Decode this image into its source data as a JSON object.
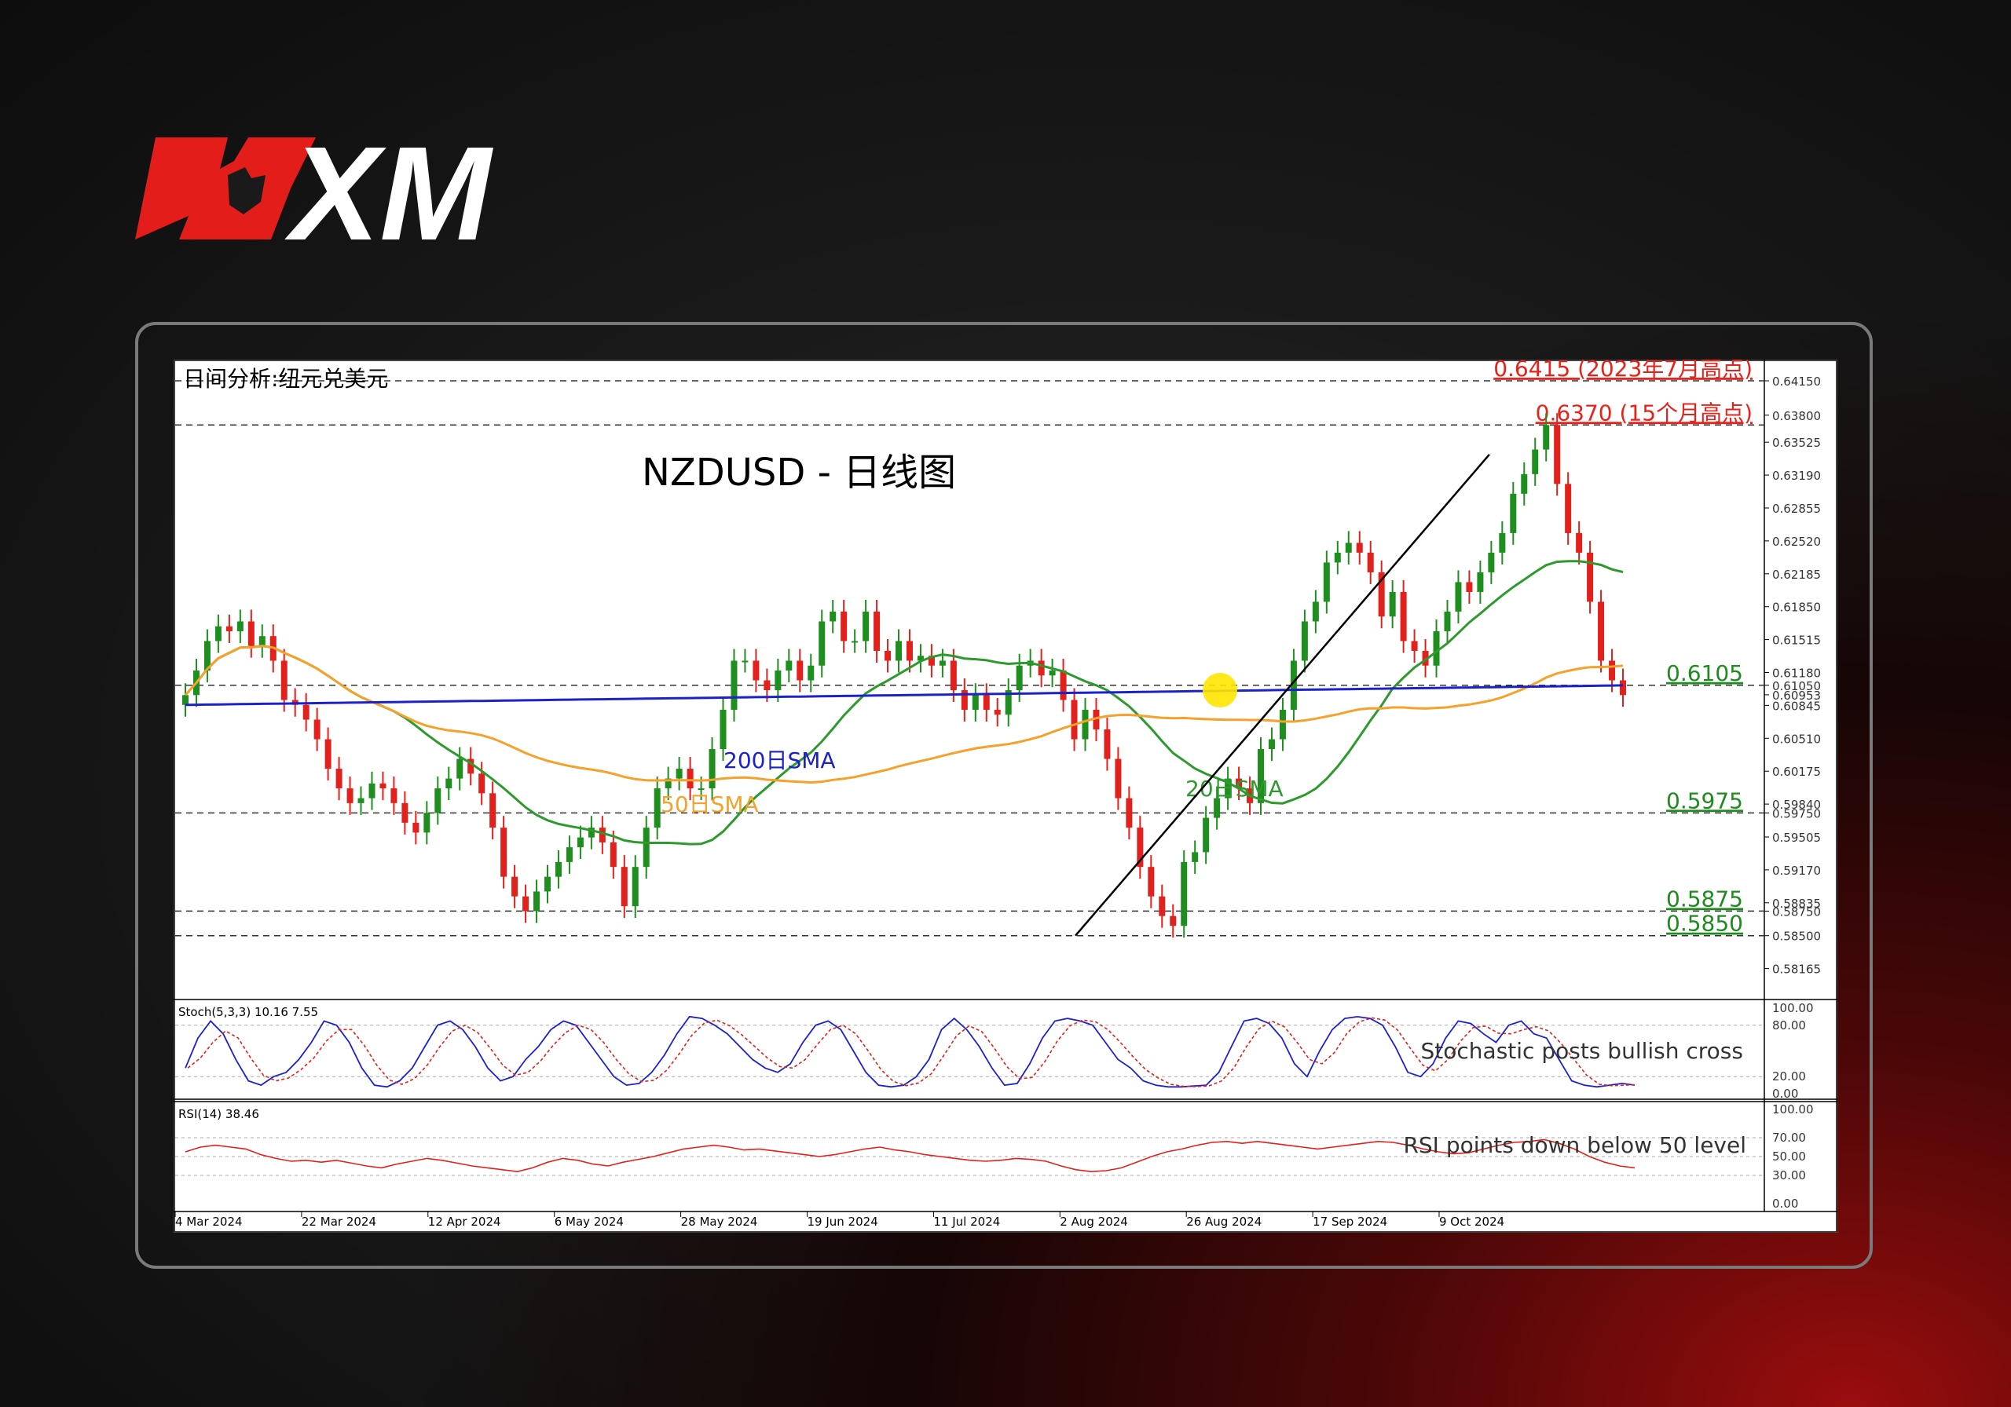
{
  "brand": {
    "logo_text": "XM",
    "colors": {
      "red": "#e31d1a",
      "white": "#ffffff"
    }
  },
  "chart_data": {
    "type": "candlestick",
    "panel_title": "日间分析:纽元兑美元",
    "title": "NZDUSD - 日线图",
    "price_axis": {
      "range": [
        0.5785,
        0.6435
      ],
      "ticks": [
        "0.64150",
        "0.63800",
        "0.63525",
        "0.63190",
        "0.62855",
        "0.62520",
        "0.62185",
        "0.61850",
        "0.61515",
        "0.61180",
        "0.61050",
        "0.60953",
        "0.60845",
        "0.60510",
        "0.60175",
        "0.59840",
        "0.59750",
        "0.59505",
        "0.59170",
        "0.58835",
        "0.58750",
        "0.58500",
        "0.58165"
      ]
    },
    "x_labels": [
      "4 Mar 2024",
      "22 Mar 2024",
      "12 Apr 2024",
      "6 May 2024",
      "28 May 2024",
      "19 Jun 2024",
      "11 Jul 2024",
      "2 Aug 2024",
      "26 Aug 2024",
      "17 Sep 2024",
      "9 Oct 2024"
    ],
    "levels": [
      {
        "value": 0.6415,
        "label": "0.6415 (2023年7月高点)",
        "color": "#e8221a"
      },
      {
        "value": 0.637,
        "label": "0.6370 (15个月高点)",
        "color": "#e8221a"
      },
      {
        "value": 0.6105,
        "label": "0.6105",
        "color": "#1f8a1f"
      },
      {
        "value": 0.5975,
        "label": "0.5975",
        "color": "#1f8a1f"
      },
      {
        "value": 0.5875,
        "label": "0.5875",
        "color": "#1f8a1f"
      },
      {
        "value": 0.585,
        "label": "0.5850",
        "color": "#1f8a1f"
      }
    ],
    "sma_labels": {
      "sma200": "200日SMA",
      "sma50": "50日SMA",
      "sma20": "20日SMA"
    },
    "sma_colors": {
      "sma200": "#1c22c8",
      "sma50": "#f5a12b",
      "sma20": "#2e9a2e"
    },
    "candle_colors": {
      "up": "#1e8f1e",
      "down": "#e2201c"
    },
    "close_series": [
      0.6095,
      0.612,
      0.615,
      0.6165,
      0.616,
      0.617,
      0.6145,
      0.6155,
      0.613,
      0.609,
      0.6085,
      0.607,
      0.605,
      0.602,
      0.6,
      0.5985,
      0.599,
      0.6005,
      0.6,
      0.5985,
      0.5965,
      0.5955,
      0.5975,
      0.6,
      0.601,
      0.603,
      0.6015,
      0.5995,
      0.596,
      0.591,
      0.589,
      0.5875,
      0.5895,
      0.591,
      0.5925,
      0.594,
      0.595,
      0.596,
      0.5945,
      0.592,
      0.588,
      0.592,
      0.596,
      0.6,
      0.601,
      0.602,
      0.6,
      0.6,
      0.604,
      0.608,
      0.613,
      0.613,
      0.611,
      0.61,
      0.612,
      0.613,
      0.611,
      0.6125,
      0.617,
      0.618,
      0.615,
      0.615,
      0.618,
      0.614,
      0.613,
      0.615,
      0.613,
      0.6135,
      0.6125,
      0.613,
      0.61,
      0.608,
      0.6095,
      0.608,
      0.6075,
      0.61,
      0.6125,
      0.613,
      0.6115,
      0.612,
      0.609,
      0.605,
      0.608,
      0.606,
      0.603,
      0.599,
      0.596,
      0.592,
      0.589,
      0.587,
      0.586,
      0.5925,
      0.5935,
      0.597,
      0.599,
      0.601,
      0.6,
      0.5985,
      0.604,
      0.605,
      0.608,
      0.613,
      0.617,
      0.619,
      0.623,
      0.624,
      0.625,
      0.624,
      0.622,
      0.6175,
      0.62,
      0.615,
      0.614,
      0.6125,
      0.616,
      0.618,
      0.621,
      0.62,
      0.622,
      0.624,
      0.626,
      0.63,
      0.632,
      0.6345,
      0.637,
      0.631,
      0.626,
      0.624,
      0.619,
      0.613,
      0.611,
      0.6095
    ],
    "stochastic": {
      "label": "Stoch(5,3,3) 10.16 7.55",
      "ticks": [
        "100.00",
        "80.00",
        "20.00",
        "0.00"
      ],
      "k_color": "#1c22c8",
      "d_color": "#e2201c",
      "annotation": "Stochastic posts bullish cross",
      "k_values": [
        30,
        65,
        85,
        70,
        40,
        15,
        10,
        20,
        25,
        40,
        60,
        85,
        80,
        60,
        30,
        10,
        8,
        15,
        30,
        55,
        80,
        85,
        75,
        55,
        30,
        15,
        20,
        40,
        55,
        75,
        85,
        80,
        60,
        40,
        20,
        10,
        12,
        25,
        45,
        70,
        90,
        88,
        80,
        70,
        55,
        40,
        30,
        25,
        35,
        60,
        80,
        85,
        75,
        50,
        25,
        10,
        8,
        10,
        20,
        40,
        75,
        88,
        75,
        55,
        30,
        10,
        12,
        35,
        65,
        85,
        88,
        85,
        80,
        60,
        40,
        30,
        15,
        10,
        8,
        8,
        9,
        10,
        25,
        55,
        85,
        88,
        82,
        65,
        35,
        20,
        50,
        75,
        88,
        90,
        88,
        80,
        55,
        25,
        20,
        35,
        65,
        85,
        82,
        70,
        60,
        80,
        85,
        70,
        65,
        40,
        15,
        10,
        8,
        10,
        12,
        10
      ]
    },
    "rsi": {
      "label": "RSI(14) 38.46",
      "ticks": [
        "100.00",
        "70.00",
        "50.00",
        "30.00",
        "0.00"
      ],
      "color": "#e2201c",
      "annotation": "RSI points down below 50 level",
      "values": [
        55,
        60,
        62,
        60,
        58,
        52,
        48,
        45,
        46,
        44,
        46,
        43,
        40,
        38,
        42,
        45,
        48,
        46,
        43,
        40,
        38,
        36,
        34,
        38,
        44,
        48,
        46,
        42,
        40,
        44,
        47,
        50,
        54,
        58,
        60,
        62,
        60,
        57,
        58,
        56,
        54,
        52,
        50,
        52,
        55,
        58,
        60,
        57,
        55,
        52,
        50,
        48,
        46,
        45,
        46,
        48,
        47,
        45,
        40,
        36,
        34,
        35,
        38,
        44,
        50,
        55,
        58,
        62,
        65,
        66,
        64,
        66,
        64,
        62,
        60,
        58,
        60,
        62,
        64,
        66,
        65,
        62,
        58,
        55,
        53,
        54,
        58,
        62,
        65,
        66,
        68,
        64,
        58,
        50,
        44,
        40,
        38
      ]
    }
  }
}
